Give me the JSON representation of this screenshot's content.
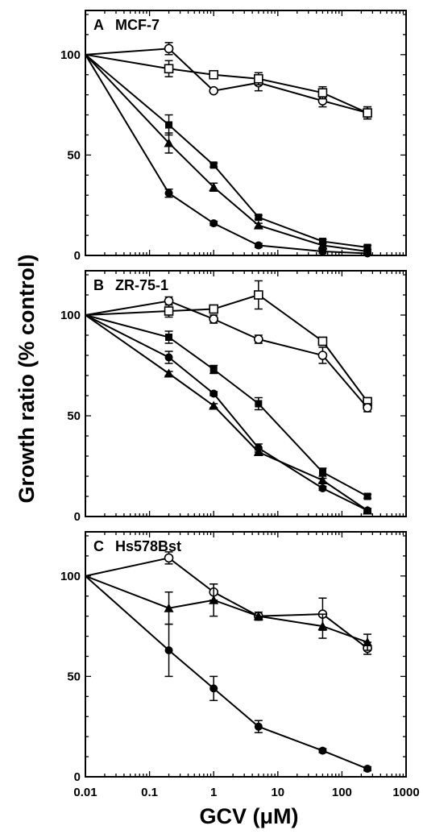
{
  "figure": {
    "ylabel": "Growth ratio (% control)",
    "xlabel": "GCV (μM)"
  },
  "chart_data": [
    {
      "type": "line",
      "panel_letter": "A",
      "title": "MCF-7",
      "xscale": "log",
      "xlim": [
        0.01,
        1000
      ],
      "ylim": [
        0,
        122
      ],
      "yticks": [
        0,
        50,
        100
      ],
      "xticks": [
        "0.01",
        "0.1",
        "1",
        "10",
        "100",
        "1000"
      ],
      "series": [
        {
          "marker": "open-circle",
          "x": [
            0.01,
            0.2,
            1,
            5,
            50,
            250
          ],
          "y": [
            100,
            103,
            82,
            86,
            77,
            71
          ],
          "err": [
            0,
            3,
            1,
            4,
            3,
            3
          ]
        },
        {
          "marker": "open-square",
          "x": [
            0.01,
            0.2,
            1,
            5,
            50,
            250
          ],
          "y": [
            100,
            93,
            90,
            88,
            81,
            71
          ],
          "err": [
            0,
            4,
            1,
            3,
            3,
            3
          ]
        },
        {
          "marker": "filled-square",
          "x": [
            0.01,
            0.2,
            1,
            5,
            50,
            250
          ],
          "y": [
            100,
            65,
            45,
            19,
            7,
            4
          ],
          "err": [
            0,
            5,
            1,
            1,
            1,
            1
          ]
        },
        {
          "marker": "filled-triangle",
          "x": [
            0.01,
            0.2,
            1,
            5,
            50,
            250
          ],
          "y": [
            100,
            56,
            34,
            15,
            5,
            2
          ],
          "err": [
            0,
            5,
            2,
            1,
            1,
            1
          ]
        },
        {
          "marker": "filled-circle",
          "x": [
            0.01,
            0.2,
            1,
            5,
            50,
            250
          ],
          "y": [
            100,
            31,
            16,
            5,
            2,
            1
          ],
          "err": [
            0,
            2,
            1,
            1,
            1,
            1
          ]
        }
      ]
    },
    {
      "type": "line",
      "panel_letter": "B",
      "title": "ZR-75-1",
      "xscale": "log",
      "xlim": [
        0.01,
        1000
      ],
      "ylim": [
        0,
        122
      ],
      "yticks": [
        0,
        50,
        100
      ],
      "xticks": [
        "0.01",
        "0.1",
        "1",
        "10",
        "100",
        "1000"
      ],
      "series": [
        {
          "marker": "open-square",
          "x": [
            0.01,
            0.2,
            1,
            5,
            50,
            250
          ],
          "y": [
            100,
            102,
            103,
            110,
            87,
            57
          ],
          "err": [
            0,
            3,
            2,
            7,
            2,
            2
          ]
        },
        {
          "marker": "open-circle",
          "x": [
            0.01,
            0.2,
            1,
            5,
            50,
            250
          ],
          "y": [
            100,
            107,
            98,
            88,
            80,
            54
          ],
          "err": [
            0,
            2,
            2,
            2,
            4,
            2
          ]
        },
        {
          "marker": "filled-square",
          "x": [
            0.01,
            0.2,
            1,
            5,
            50,
            250
          ],
          "y": [
            100,
            89,
            73,
            56,
            22,
            10
          ],
          "err": [
            0,
            3,
            2,
            3,
            2,
            1
          ]
        },
        {
          "marker": "filled-circle",
          "x": [
            0.01,
            0.2,
            1,
            5,
            50,
            250
          ],
          "y": [
            100,
            79,
            61,
            34,
            14,
            3
          ],
          "err": [
            0,
            3,
            1,
            2,
            1,
            1
          ]
        },
        {
          "marker": "filled-triangle",
          "x": [
            0.01,
            0.2,
            1,
            5,
            50,
            250
          ],
          "y": [
            100,
            71,
            55,
            32,
            18,
            3
          ],
          "err": [
            0,
            1,
            1,
            1,
            1,
            1
          ]
        }
      ]
    },
    {
      "type": "line",
      "panel_letter": "C",
      "title": "Hs578Bst",
      "xscale": "log",
      "xlim": [
        0.01,
        1000
      ],
      "ylim": [
        0,
        122
      ],
      "yticks": [
        0,
        50,
        100
      ],
      "xticks": [
        "0.01",
        "0.1",
        "1",
        "10",
        "100",
        "1000"
      ],
      "series": [
        {
          "marker": "open-circle",
          "x": [
            0.01,
            0.2,
            1,
            5,
            50,
            250
          ],
          "y": [
            100,
            109,
            92,
            80,
            81,
            64
          ],
          "err": [
            0,
            3,
            4,
            1,
            8,
            3
          ]
        },
        {
          "marker": "filled-triangle",
          "x": [
            0.01,
            0.2,
            1,
            5,
            50,
            250
          ],
          "y": [
            100,
            84,
            88,
            80,
            75,
            67
          ],
          "err": [
            0,
            8,
            8,
            2,
            6,
            4
          ]
        },
        {
          "marker": "filled-circle",
          "x": [
            0.01,
            0.2,
            1,
            5,
            50,
            250
          ],
          "y": [
            100,
            63,
            44,
            25,
            13,
            4
          ],
          "err": [
            0,
            13,
            6,
            3,
            1,
            1
          ]
        }
      ]
    }
  ]
}
